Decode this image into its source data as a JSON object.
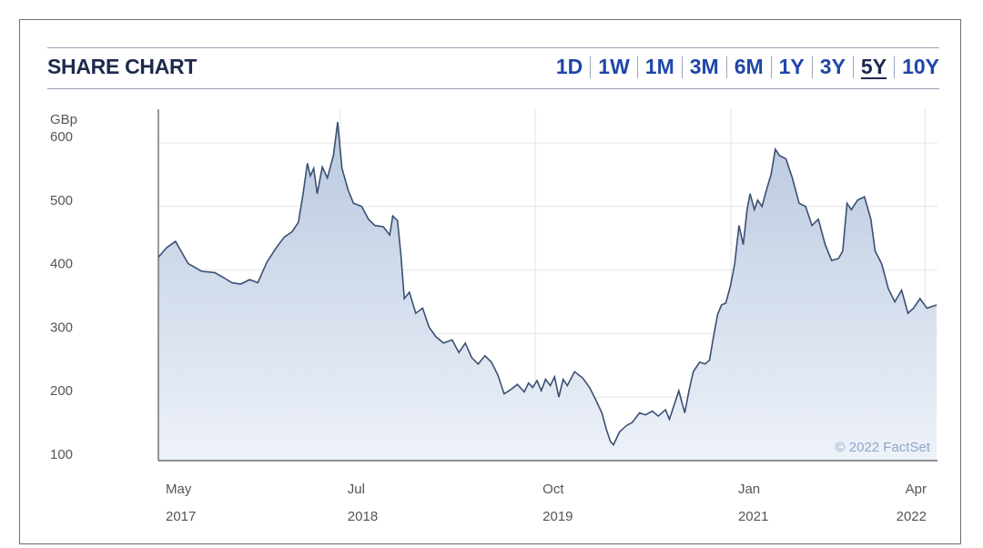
{
  "header": {
    "title": "SHARE CHART",
    "ranges": [
      "1D",
      "1W",
      "1M",
      "3M",
      "6M",
      "1Y",
      "3Y",
      "5Y",
      "10Y"
    ],
    "active_range": "5Y"
  },
  "colors": {
    "line": "#3a4f72",
    "fill_top": "#b9c8df",
    "fill_bottom": "#eef2f9",
    "title": "#1d2a4e",
    "range_links": "#1f47a8"
  },
  "chart_data": {
    "type": "area",
    "title": "SHARE CHART",
    "ylabel": "GBp",
    "xlabel": "",
    "ylim": [
      100,
      640
    ],
    "yticks": [
      100,
      200,
      300,
      400,
      500,
      600
    ],
    "xlim": [
      "2017-05-01",
      "2022-04-30"
    ],
    "xticks": [
      {
        "date": "2017-05-01",
        "label": "May",
        "year": "2017"
      },
      {
        "date": "2018-07-01",
        "label": "Jul",
        "year": "2018"
      },
      {
        "date": "2019-10-01",
        "label": "Oct",
        "year": "2019"
      },
      {
        "date": "2021-01-01",
        "label": "Jan",
        "year": "2021"
      },
      {
        "date": "2022-04-01",
        "label": "Apr",
        "year": "2022"
      }
    ],
    "grid": true,
    "credit": "© 2022 FactSet",
    "series": [
      {
        "points": [
          [
            "2017-05-01",
            420
          ],
          [
            "2017-05-20",
            435
          ],
          [
            "2017-06-10",
            445
          ],
          [
            "2017-07-10",
            410
          ],
          [
            "2017-08-10",
            398
          ],
          [
            "2017-09-10",
            396
          ],
          [
            "2017-10-01",
            388
          ],
          [
            "2017-10-20",
            380
          ],
          [
            "2017-11-10",
            378
          ],
          [
            "2017-12-01",
            385
          ],
          [
            "2017-12-20",
            380
          ],
          [
            "2018-01-10",
            412
          ],
          [
            "2018-02-01",
            435
          ],
          [
            "2018-02-20",
            452
          ],
          [
            "2018-03-10",
            460
          ],
          [
            "2018-03-25",
            475
          ],
          [
            "2018-04-05",
            520
          ],
          [
            "2018-04-15",
            568
          ],
          [
            "2018-04-22",
            548
          ],
          [
            "2018-04-30",
            560
          ],
          [
            "2018-05-08",
            520
          ],
          [
            "2018-05-20",
            562
          ],
          [
            "2018-06-01",
            545
          ],
          [
            "2018-06-15",
            580
          ],
          [
            "2018-06-25",
            633
          ],
          [
            "2018-07-05",
            560
          ],
          [
            "2018-07-20",
            525
          ],
          [
            "2018-08-01",
            505
          ],
          [
            "2018-08-20",
            500
          ],
          [
            "2018-09-05",
            480
          ],
          [
            "2018-09-20",
            470
          ],
          [
            "2018-10-10",
            468
          ],
          [
            "2018-10-25",
            455
          ],
          [
            "2018-11-01",
            485
          ],
          [
            "2018-11-12",
            478
          ],
          [
            "2018-11-20",
            425
          ],
          [
            "2018-11-28",
            355
          ],
          [
            "2018-12-10",
            365
          ],
          [
            "2018-12-25",
            332
          ],
          [
            "2019-01-10",
            340
          ],
          [
            "2019-01-25",
            310
          ],
          [
            "2019-02-10",
            295
          ],
          [
            "2019-02-28",
            285
          ],
          [
            "2019-03-20",
            290
          ],
          [
            "2019-04-05",
            270
          ],
          [
            "2019-04-20",
            285
          ],
          [
            "2019-05-05",
            262
          ],
          [
            "2019-05-20",
            252
          ],
          [
            "2019-06-05",
            265
          ],
          [
            "2019-06-20",
            255
          ],
          [
            "2019-07-05",
            235
          ],
          [
            "2019-07-20",
            205
          ],
          [
            "2019-08-05",
            212
          ],
          [
            "2019-08-20",
            220
          ],
          [
            "2019-09-05",
            208
          ],
          [
            "2019-09-15",
            222
          ],
          [
            "2019-09-25",
            215
          ],
          [
            "2019-10-05",
            226
          ],
          [
            "2019-10-15",
            210
          ],
          [
            "2019-10-25",
            228
          ],
          [
            "2019-11-05",
            218
          ],
          [
            "2019-11-15",
            232
          ],
          [
            "2019-11-25",
            200
          ],
          [
            "2019-12-05",
            228
          ],
          [
            "2019-12-15",
            218
          ],
          [
            "2020-01-01",
            240
          ],
          [
            "2020-01-20",
            230
          ],
          [
            "2020-02-05",
            215
          ],
          [
            "2020-02-20",
            195
          ],
          [
            "2020-03-05",
            175
          ],
          [
            "2020-03-15",
            150
          ],
          [
            "2020-03-25",
            130
          ],
          [
            "2020-04-01",
            125
          ],
          [
            "2020-04-15",
            145
          ],
          [
            "2020-05-01",
            155
          ],
          [
            "2020-05-15",
            160
          ],
          [
            "2020-06-01",
            175
          ],
          [
            "2020-06-15",
            172
          ],
          [
            "2020-07-01",
            178
          ],
          [
            "2020-07-15",
            170
          ],
          [
            "2020-08-01",
            180
          ],
          [
            "2020-08-10",
            165
          ],
          [
            "2020-08-20",
            185
          ],
          [
            "2020-09-01",
            210
          ],
          [
            "2020-09-15",
            175
          ],
          [
            "2020-09-25",
            210
          ],
          [
            "2020-10-05",
            240
          ],
          [
            "2020-10-20",
            255
          ],
          [
            "2020-11-01",
            252
          ],
          [
            "2020-11-12",
            258
          ],
          [
            "2020-11-20",
            290
          ],
          [
            "2020-12-01",
            330
          ],
          [
            "2020-12-10",
            345
          ],
          [
            "2020-12-20",
            348
          ],
          [
            "2020-12-31",
            375
          ],
          [
            "2021-01-10",
            410
          ],
          [
            "2021-01-20",
            470
          ],
          [
            "2021-01-30",
            440
          ],
          [
            "2021-02-08",
            495
          ],
          [
            "2021-02-15",
            520
          ],
          [
            "2021-02-25",
            495
          ],
          [
            "2021-03-05",
            510
          ],
          [
            "2021-03-15",
            500
          ],
          [
            "2021-03-25",
            525
          ],
          [
            "2021-04-05",
            550
          ],
          [
            "2021-04-15",
            590
          ],
          [
            "2021-04-25",
            580
          ],
          [
            "2021-05-10",
            575
          ],
          [
            "2021-05-25",
            545
          ],
          [
            "2021-06-10",
            505
          ],
          [
            "2021-06-25",
            500
          ],
          [
            "2021-07-10",
            470
          ],
          [
            "2021-07-25",
            480
          ],
          [
            "2021-08-10",
            440
          ],
          [
            "2021-08-25",
            415
          ],
          [
            "2021-09-10",
            418
          ],
          [
            "2021-09-20",
            430
          ],
          [
            "2021-09-30",
            505
          ],
          [
            "2021-10-10",
            495
          ],
          [
            "2021-10-25",
            510
          ],
          [
            "2021-11-10",
            515
          ],
          [
            "2021-11-25",
            480
          ],
          [
            "2021-12-05",
            430
          ],
          [
            "2021-12-20",
            410
          ],
          [
            "2022-01-05",
            370
          ],
          [
            "2022-01-20",
            350
          ],
          [
            "2022-02-05",
            368
          ],
          [
            "2022-02-20",
            332
          ],
          [
            "2022-03-05",
            340
          ],
          [
            "2022-03-20",
            355
          ],
          [
            "2022-04-05",
            340
          ],
          [
            "2022-04-28",
            345
          ]
        ]
      }
    ]
  }
}
